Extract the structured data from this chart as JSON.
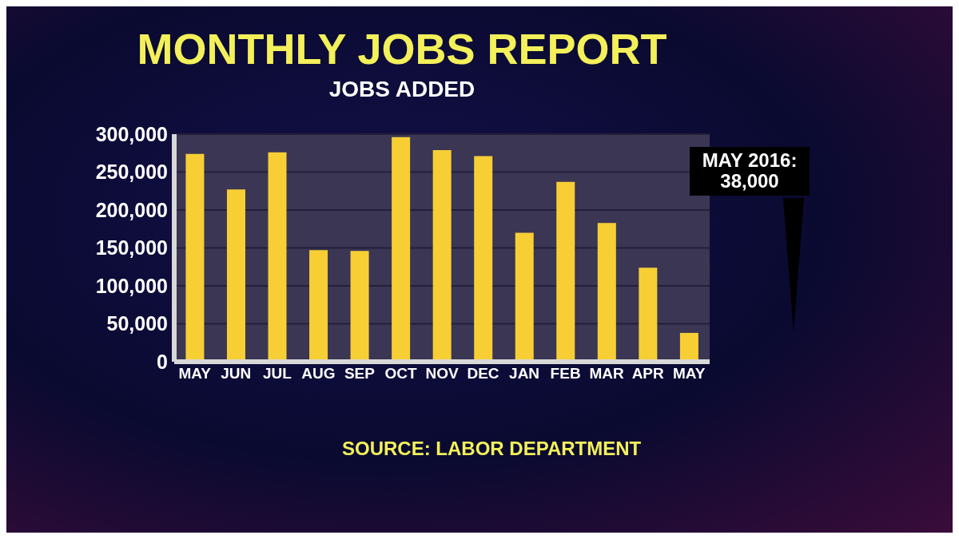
{
  "chart_data": {
    "type": "bar",
    "title": "MONTHLY JOBS REPORT",
    "subtitle": "JOBS ADDED",
    "categories": [
      "MAY",
      "JUN",
      "JUL",
      "AUG",
      "SEP",
      "OCT",
      "NOV",
      "DEC",
      "JAN",
      "FEB",
      "MAR",
      "APR",
      "MAY"
    ],
    "values": [
      274000,
      227000,
      276000,
      147000,
      146000,
      296000,
      279000,
      271000,
      170000,
      237000,
      183000,
      124000,
      38000
    ],
    "color": "#f7cf35",
    "ylim": [
      0,
      300000
    ],
    "yticks": [
      0,
      {
        "value": 50000,
        "label": "50,000"
      },
      {
        "value": 100000,
        "label": "100,000"
      },
      {
        "value": 150000,
        "label": "150,000"
      },
      {
        "value": 200000,
        "label": "200,000"
      },
      {
        "value": 250000,
        "label": "250,000"
      },
      {
        "value": 300000,
        "label": "300,000"
      }
    ],
    "grid": "y",
    "annotations": [
      "MAY 2016:\n38,000",
      "SOURCE: LABOR DEPARTMENT"
    ]
  }
}
